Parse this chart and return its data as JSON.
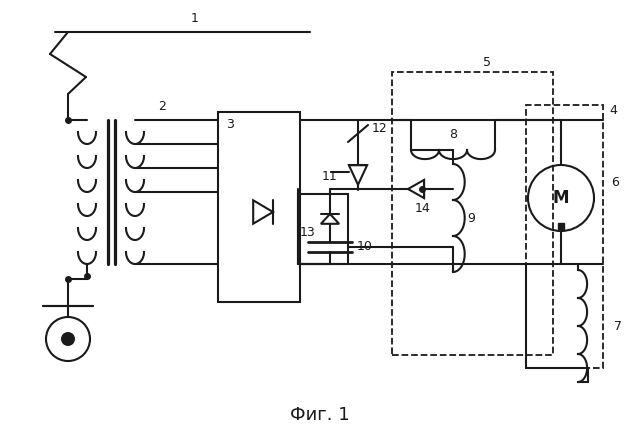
{
  "bg": "#ffffff",
  "lc": "#1a1a1a",
  "lw": 1.5,
  "title": "Фиг. 1",
  "tfs": 13
}
